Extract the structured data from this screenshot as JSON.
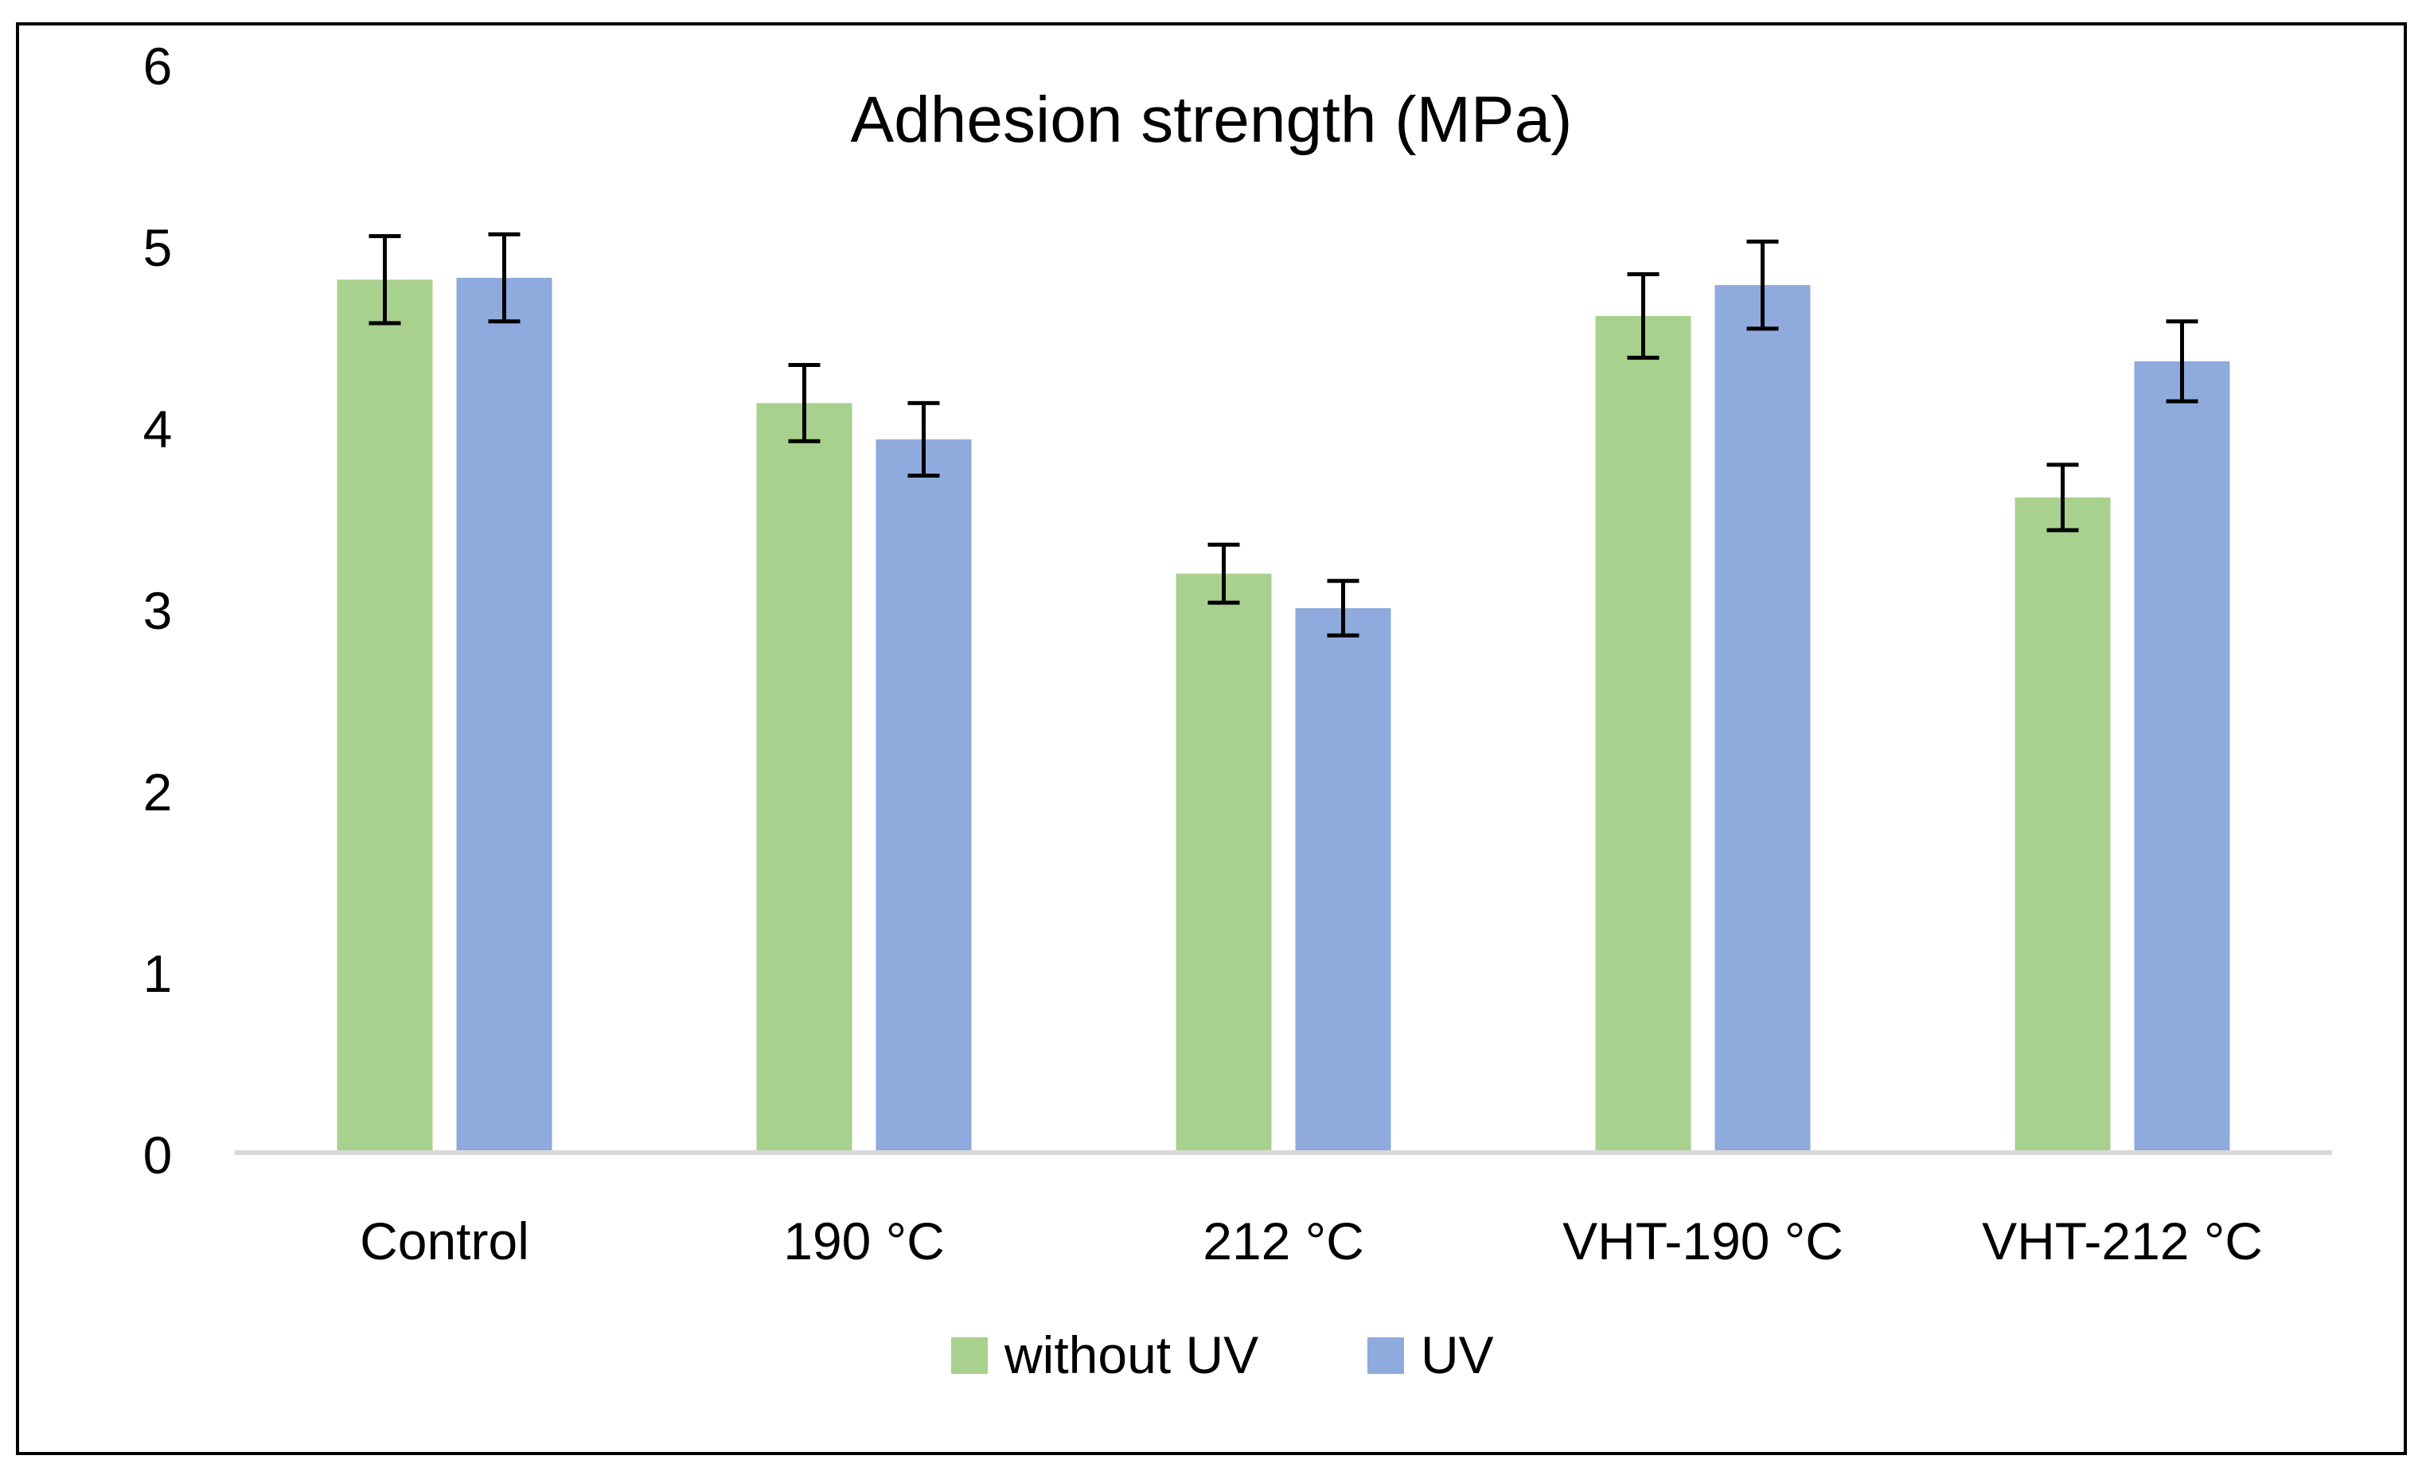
{
  "chart_data": {
    "type": "bar",
    "title": "Adhesion strength  (MPa)",
    "xlabel": "",
    "ylabel": "",
    "ylim": [
      0,
      6
    ],
    "yticks": [
      0,
      1,
      2,
      3,
      4,
      5,
      6
    ],
    "categories": [
      "Control",
      "190 °C",
      "212 °C",
      "VHT-190 °C",
      "VHT-212 °C"
    ],
    "series": [
      {
        "name": "without UV",
        "color": "#a9d18e",
        "values": [
          4.81,
          4.13,
          3.19,
          4.61,
          3.61
        ],
        "errors": [
          0.24,
          0.21,
          0.16,
          0.23,
          0.18
        ]
      },
      {
        "name": "UV",
        "color": "#8faadc",
        "values": [
          4.82,
          3.93,
          3.0,
          4.78,
          4.36
        ],
        "errors": [
          0.24,
          0.2,
          0.15,
          0.24,
          0.22
        ]
      }
    ],
    "grid": false,
    "legend": "bottom-center"
  }
}
